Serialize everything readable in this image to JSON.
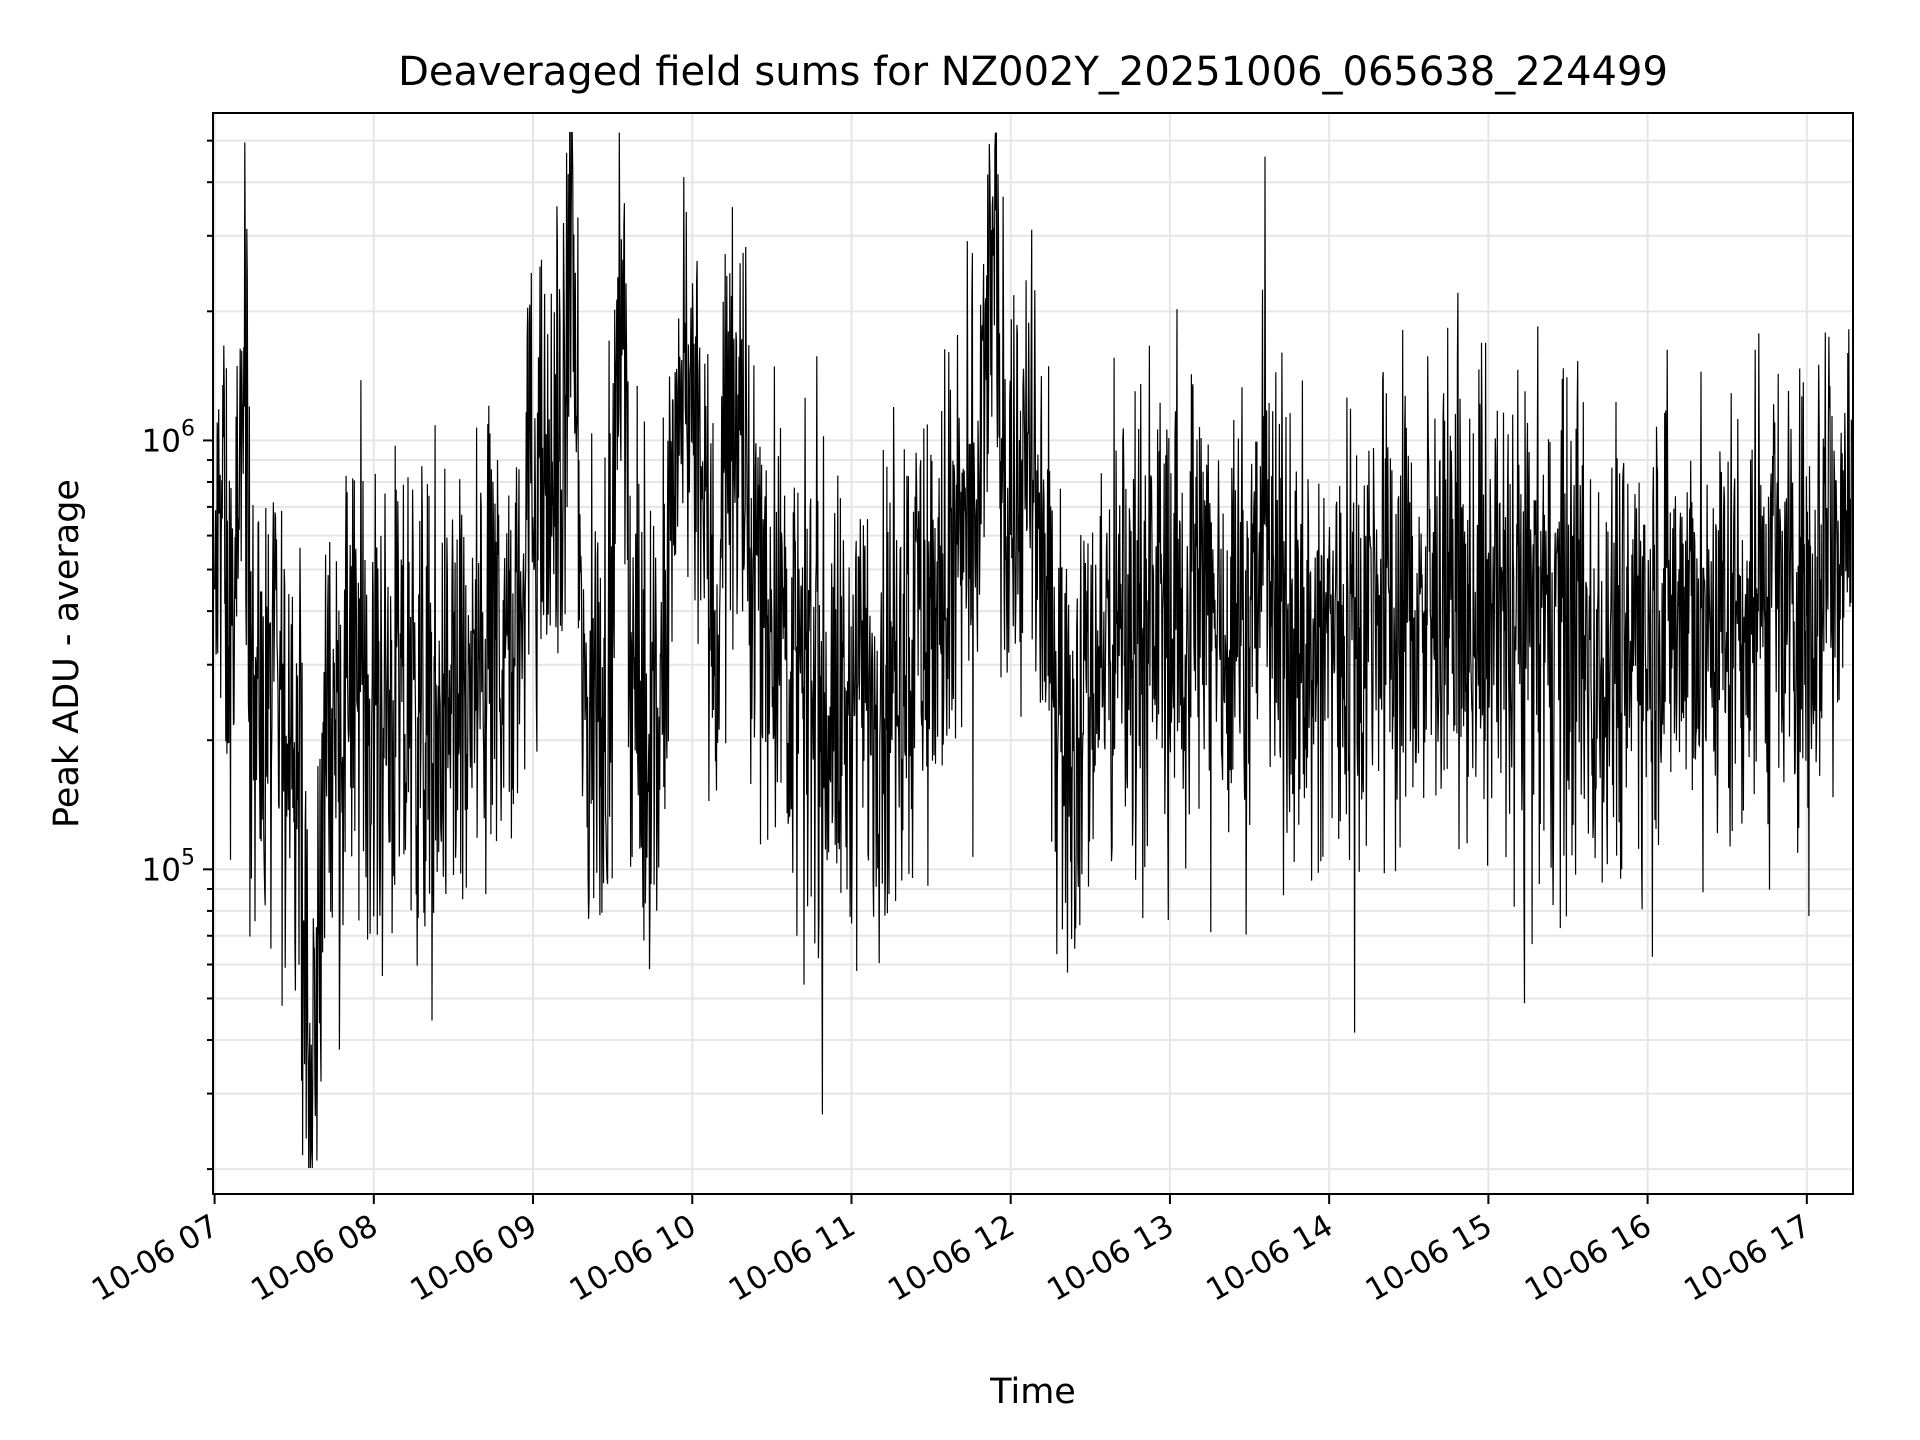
{
  "chart_data": {
    "type": "line",
    "title": "Deaveraged field sums for NZ002Y_20251006_065638_224499",
    "xlabel": "Time",
    "ylabel": "Peak ADU - average",
    "x_tick_labels": [
      "10-06 07",
      "10-06 08",
      "10-06 09",
      "10-06 10",
      "10-06 11",
      "10-06 12",
      "10-06 13",
      "10-06 14",
      "10-06 15",
      "10-06 16",
      "10-06 17"
    ],
    "x_ticks_hours": [
      7,
      8,
      9,
      10,
      11,
      12,
      13,
      14,
      15,
      16,
      17
    ],
    "x_range_hours": [
      6.99,
      17.29
    ],
    "y_scale": "log",
    "ylim": [
      17500,
      5800000
    ],
    "y_tick_labels": [
      {
        "base": "10",
        "exp": "5",
        "value": 100000
      },
      {
        "base": "10",
        "exp": "6",
        "value": 1000000
      }
    ],
    "grid": true,
    "line_color": "#000000",
    "series": [
      {
        "values": [
          [
            7.0,
            400000
          ],
          [
            7.05,
            700000
          ],
          [
            7.1,
            320000
          ],
          [
            7.15,
            450000
          ],
          [
            7.19,
            2300000
          ],
          [
            7.22,
            350000
          ],
          [
            7.3,
            200000
          ],
          [
            7.38,
            240000
          ],
          [
            7.45,
            210000
          ],
          [
            7.52,
            220000
          ],
          [
            7.61,
            23000
          ],
          [
            7.7,
            230000
          ],
          [
            7.8,
            210000
          ],
          [
            7.9,
            300000
          ],
          [
            8.0,
            260000
          ],
          [
            8.1,
            230000
          ],
          [
            8.2,
            220000
          ],
          [
            8.3,
            240000
          ],
          [
            8.42,
            200000
          ],
          [
            8.5,
            260000
          ],
          [
            8.6,
            250000
          ],
          [
            8.7,
            280000
          ],
          [
            8.8,
            350000
          ],
          [
            8.88,
            280000
          ],
          [
            8.93,
            650000
          ],
          [
            9.0,
            800000
          ],
          [
            9.08,
            700000
          ],
          [
            9.15,
            900000
          ],
          [
            9.2,
            1000000
          ],
          [
            9.24,
            4500000
          ],
          [
            9.3,
            300000
          ],
          [
            9.35,
            220000
          ],
          [
            9.4,
            230000
          ],
          [
            9.45,
            250000
          ],
          [
            9.5,
            500000
          ],
          [
            9.56,
            3200000
          ],
          [
            9.62,
            300000
          ],
          [
            9.7,
            200000
          ],
          [
            9.78,
            200000
          ],
          [
            9.85,
            400000
          ],
          [
            9.92,
            1100000
          ],
          [
            9.97,
            1300000
          ],
          [
            10.05,
            800000
          ],
          [
            10.15,
            350000
          ],
          [
            10.22,
            1000000
          ],
          [
            10.28,
            1400000
          ],
          [
            10.35,
            500000
          ],
          [
            10.45,
            450000
          ],
          [
            10.55,
            400000
          ],
          [
            10.65,
            280000
          ],
          [
            10.75,
            260000
          ],
          [
            10.85,
            240000
          ],
          [
            10.95,
            220000
          ],
          [
            11.05,
            250000
          ],
          [
            11.15,
            270000
          ],
          [
            11.25,
            300000
          ],
          [
            11.35,
            350000
          ],
          [
            11.45,
            400000
          ],
          [
            11.55,
            420000
          ],
          [
            11.65,
            500000
          ],
          [
            11.75,
            550000
          ],
          [
            11.83,
            1100000
          ],
          [
            11.89,
            3200000
          ],
          [
            11.95,
            900000
          ],
          [
            12.05,
            800000
          ],
          [
            12.12,
            750000
          ],
          [
            12.2,
            550000
          ],
          [
            12.27,
            300000
          ],
          [
            12.35,
            200000
          ],
          [
            12.45,
            250000
          ],
          [
            12.55,
            320000
          ],
          [
            12.65,
            340000
          ],
          [
            12.75,
            380000
          ],
          [
            12.85,
            400000
          ],
          [
            12.95,
            420000
          ],
          [
            13.05,
            450000
          ],
          [
            13.15,
            430000
          ],
          [
            13.25,
            420000
          ],
          [
            13.35,
            380000
          ],
          [
            13.45,
            400000
          ],
          [
            13.55,
            450000
          ],
          [
            13.6,
            1000000
          ],
          [
            13.65,
            380000
          ],
          [
            13.75,
            350000
          ],
          [
            13.85,
            300000
          ],
          [
            13.95,
            320000
          ],
          [
            14.05,
            380000
          ],
          [
            14.15,
            400000
          ],
          [
            14.25,
            420000
          ],
          [
            14.35,
            400000
          ],
          [
            14.45,
            410000
          ],
          [
            14.55,
            400000
          ],
          [
            14.65,
            390000
          ],
          [
            14.75,
            380000
          ],
          [
            14.85,
            420000
          ],
          [
            14.95,
            410000
          ],
          [
            15.05,
            400000
          ],
          [
            15.15,
            420000
          ],
          [
            15.25,
            390000
          ],
          [
            15.35,
            380000
          ],
          [
            15.45,
            400000
          ],
          [
            15.55,
            360000
          ],
          [
            15.65,
            300000
          ],
          [
            15.75,
            340000
          ],
          [
            15.85,
            360000
          ],
          [
            15.95,
            400000
          ],
          [
            16.05,
            420000
          ],
          [
            16.15,
            410000
          ],
          [
            16.25,
            400000
          ],
          [
            16.35,
            370000
          ],
          [
            16.45,
            380000
          ],
          [
            16.55,
            360000
          ],
          [
            16.65,
            400000
          ],
          [
            16.75,
            410000
          ],
          [
            16.85,
            420000
          ],
          [
            16.95,
            430000
          ],
          [
            17.02,
            420000
          ],
          [
            17.08,
            550000
          ],
          [
            17.15,
            600000
          ],
          [
            17.22,
            650000
          ],
          [
            17.28,
            700000
          ]
        ]
      }
    ]
  }
}
